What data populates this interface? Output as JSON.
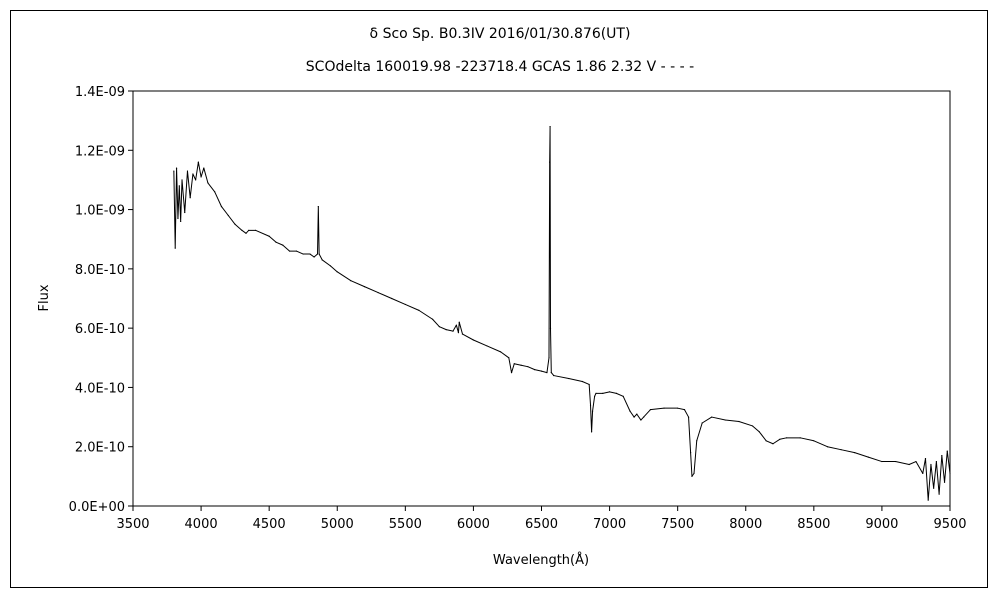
{
  "chart_data": {
    "type": "line",
    "title": "δ Sco    Sp. B0.3IV    2016/01/30.876(UT)",
    "subtitle": "SCOdelta 160019.98 -223718.4 GCAS 1.86 2.32 V - - - -",
    "xlabel": "Wavelength(Å)",
    "ylabel": "Flux",
    "xlim": [
      3500,
      9500
    ],
    "ylim": [
      0,
      1.4e-09
    ],
    "xticks": [
      3500,
      4000,
      4500,
      5000,
      5500,
      6000,
      6500,
      7000,
      7500,
      8000,
      8500,
      9000,
      9500
    ],
    "xtick_labels": [
      "3500",
      "4000",
      "4500",
      "5000",
      "5500",
      "6000",
      "6500",
      "7000",
      "7500",
      "8000",
      "8500",
      "9000",
      "9500"
    ],
    "yticks": [
      0,
      2e-10,
      4e-10,
      6e-10,
      8e-10,
      1e-09,
      1.2e-09,
      1.4e-09
    ],
    "ytick_labels": [
      "0.0E+00",
      "2.0E-10",
      "4.0E-10",
      "6.0E-10",
      "8.0E-10",
      "1.0E-09",
      "1.2E-09",
      "1.4E-09"
    ],
    "grid": false,
    "legend": "none",
    "line_color": "#000000",
    "series": [
      {
        "x": [
          3800,
          3810,
          3820,
          3830,
          3840,
          3850,
          3860,
          3880,
          3900,
          3920,
          3940,
          3960,
          3980,
          4000,
          4020,
          4050,
          4100,
          4150,
          4200,
          4250,
          4300,
          4330,
          4350,
          4400,
          4500,
          4550,
          4600,
          4650,
          4700,
          4750,
          4800,
          4830,
          4855,
          4861,
          4867,
          4890,
          4950,
          5000,
          5100,
          5200,
          5300,
          5400,
          5500,
          5600,
          5700,
          5750,
          5800,
          5850,
          5875,
          5890,
          5896,
          5920,
          6000,
          6100,
          6200,
          6260,
          6280,
          6300,
          6350,
          6400,
          6450,
          6500,
          6540,
          6555,
          6560,
          6563,
          6566,
          6572,
          6590,
          6700,
          6800,
          6850,
          6860,
          6868,
          6875,
          6890,
          6900,
          6950,
          7000,
          7050,
          7100,
          7150,
          7180,
          7200,
          7230,
          7250,
          7300,
          7400,
          7500,
          7550,
          7580,
          7595,
          7605,
          7620,
          7640,
          7680,
          7750,
          7850,
          7950,
          8050,
          8100,
          8150,
          8200,
          8250,
          8300,
          8400,
          8500,
          8600,
          8700,
          8800,
          8900,
          9000,
          9100,
          9200,
          9250,
          9300,
          9320,
          9340,
          9360,
          9380,
          9400,
          9420,
          9440,
          9460,
          9480,
          9500
        ],
        "y": [
          1.13e-09,
          8.7e-10,
          1.14e-09,
          9.7e-10,
          1.08e-09,
          9.6e-10,
          1.1e-09,
          9.9e-10,
          1.13e-09,
          1.04e-09,
          1.12e-09,
          1.1e-09,
          1.16e-09,
          1.11e-09,
          1.14e-09,
          1.09e-09,
          1.06e-09,
          1.01e-09,
          9.8e-10,
          9.5e-10,
          9.3e-10,
          9.2e-10,
          9.3e-10,
          9.3e-10,
          9.1e-10,
          8.9e-10,
          8.8e-10,
          8.6e-10,
          8.6e-10,
          8.5e-10,
          8.5e-10,
          8.4e-10,
          8.5e-10,
          1.01e-09,
          8.5e-10,
          8.3e-10,
          8.1e-10,
          7.9e-10,
          7.6e-10,
          7.4e-10,
          7.2e-10,
          7e-10,
          6.8e-10,
          6.6e-10,
          6.3e-10,
          6.05e-10,
          5.95e-10,
          5.9e-10,
          6.1e-10,
          5.85e-10,
          6.2e-10,
          5.8e-10,
          5.6e-10,
          5.4e-10,
          5.2e-10,
          5e-10,
          4.5e-10,
          4.8e-10,
          4.75e-10,
          4.7e-10,
          4.6e-10,
          4.55e-10,
          4.5e-10,
          5e-10,
          1.16e-09,
          1.28e-09,
          6e-10,
          4.5e-10,
          4.4e-10,
          4.3e-10,
          4.2e-10,
          4.1e-10,
          3.4e-10,
          2.5e-10,
          3.2e-10,
          3.7e-10,
          3.8e-10,
          3.8e-10,
          3.85e-10,
          3.8e-10,
          3.7e-10,
          3.2e-10,
          3e-10,
          3.1e-10,
          2.9e-10,
          3e-10,
          3.25e-10,
          3.3e-10,
          3.3e-10,
          3.25e-10,
          3e-10,
          1.8e-10,
          1e-10,
          1.1e-10,
          2.2e-10,
          2.8e-10,
          3e-10,
          2.9e-10,
          2.85e-10,
          2.7e-10,
          2.5e-10,
          2.2e-10,
          2.1e-10,
          2.25e-10,
          2.3e-10,
          2.3e-10,
          2.2e-10,
          2e-10,
          1.9e-10,
          1.8e-10,
          1.65e-10,
          1.5e-10,
          1.5e-10,
          1.4e-10,
          1.5e-10,
          1.1e-10,
          1.6e-10,
          2e-11,
          1.4e-10,
          6e-11,
          1.5e-10,
          4e-11,
          1.7e-10,
          8e-11,
          1.85e-10,
          1.1e-10
        ]
      }
    ]
  }
}
